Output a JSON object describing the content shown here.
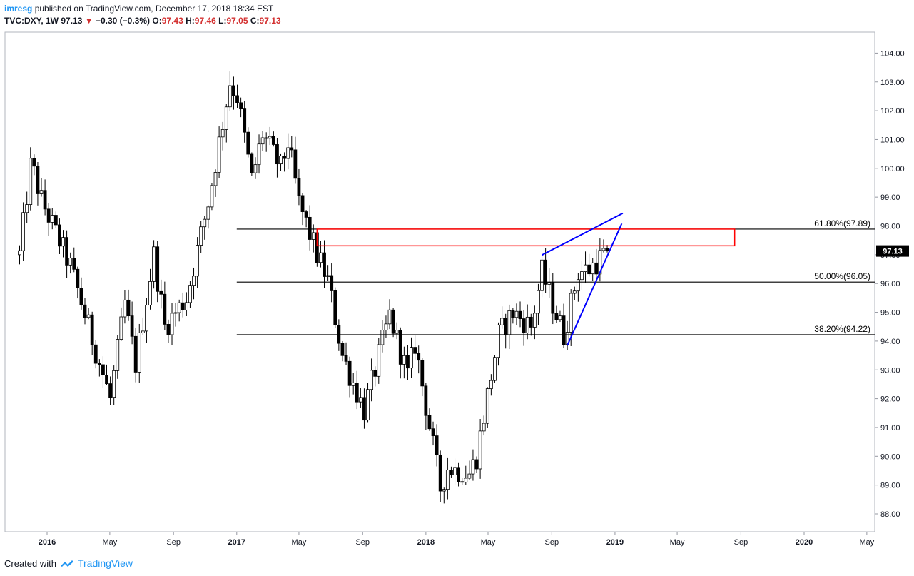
{
  "header": {
    "username": "imresg",
    "published_text": "published on TradingView.com, December 17, 2018 18:34 EST",
    "symbol": "TVC:DXY, 1W",
    "last": "97.13",
    "change_icon": "triangle-down-icon",
    "change": "−0.30 (−0.3%)",
    "o_label": "O:",
    "o_value": "97.43",
    "h_label": "H:",
    "h_value": "97.46",
    "l_label": "L:",
    "l_value": "97.05",
    "c_label": "C:",
    "c_value": "97.13"
  },
  "footer": {
    "created_with": "Created with",
    "brand": "TradingView",
    "logo_icon": "tradingview-logo-icon"
  },
  "colors": {
    "down": "#000000",
    "up": "#ffffff",
    "fib": "#000000",
    "zone": "#ff0000",
    "wedge": "#0000ff",
    "price_label_bg": "#000000"
  },
  "chart_data": {
    "type": "candlestick",
    "symbol": "TVC:DXY",
    "interval": "1W",
    "y_axis": {
      "min": 88,
      "max": 104,
      "ticks": [
        "88.00",
        "89.00",
        "90.00",
        "91.00",
        "92.00",
        "93.00",
        "94.00",
        "95.00",
        "96.00",
        "97.00",
        "98.00",
        "99.00",
        "100.00",
        "101.00",
        "102.00",
        "103.00",
        "104.00"
      ],
      "position": "right"
    },
    "x_axis": {
      "ticks": [
        {
          "label": "2016",
          "date": "2016-01-01",
          "bold": true
        },
        {
          "label": "May",
          "date": "2016-05-01"
        },
        {
          "label": "Sep",
          "date": "2016-09-01"
        },
        {
          "label": "2017",
          "date": "2017-01-01",
          "bold": true
        },
        {
          "label": "May",
          "date": "2017-05-01"
        },
        {
          "label": "Sep",
          "date": "2017-09-01"
        },
        {
          "label": "2018",
          "date": "2018-01-01",
          "bold": true
        },
        {
          "label": "May",
          "date": "2018-05-01"
        },
        {
          "label": "Sep",
          "date": "2018-09-01"
        },
        {
          "label": "2019",
          "date": "2019-01-01",
          "bold": true
        },
        {
          "label": "May",
          "date": "2019-05-01"
        },
        {
          "label": "Sep",
          "date": "2019-09-01"
        },
        {
          "label": "2020",
          "date": "2020-01-01",
          "bold": true
        },
        {
          "label": "May",
          "date": "2020-05-01"
        }
      ]
    },
    "last_price": "97.13",
    "fib_levels": [
      {
        "label": "61.80%(97.89)",
        "value": 97.89,
        "from": "2017-01-01"
      },
      {
        "label": "50.00%(96.05)",
        "value": 96.05,
        "from": "2017-01-01"
      },
      {
        "label": "38.20%(94.22)",
        "value": 94.22,
        "from": "2017-01-01"
      }
    ],
    "resistance_zone": {
      "from": "2017-06-05",
      "to": "2019-08-20",
      "top": 97.89,
      "bottom": 97.31
    },
    "wedge_lines": [
      {
        "start": {
          "date": "2018-08-13",
          "value": 96.99
        },
        "end": {
          "date": "2019-01-16",
          "value": 98.44
        }
      },
      {
        "start": {
          "date": "2018-10-01",
          "value": 93.85
        },
        "end": {
          "date": "2019-01-14",
          "value": 98.08
        }
      }
    ],
    "anchors": [
      {
        "date": "2015-11-09",
        "value": 97.0
      },
      {
        "date": "2015-12-01",
        "value": 100.2
      },
      {
        "date": "2015-12-21",
        "value": 98.9
      },
      {
        "date": "2016-02-15",
        "value": 96.6
      },
      {
        "date": "2016-05-02",
        "value": 92.0
      },
      {
        "date": "2016-05-30",
        "value": 95.3
      },
      {
        "date": "2016-06-20",
        "value": 93.2
      },
      {
        "date": "2016-07-25",
        "value": 97.0
      },
      {
        "date": "2016-08-15",
        "value": 94.5
      },
      {
        "date": "2016-09-26",
        "value": 95.5
      },
      {
        "date": "2016-11-07",
        "value": 98.8
      },
      {
        "date": "2016-12-19",
        "value": 103.0
      },
      {
        "date": "2017-01-02",
        "value": 102.5
      },
      {
        "date": "2017-01-30",
        "value": 99.6
      },
      {
        "date": "2017-02-20",
        "value": 101.2
      },
      {
        "date": "2017-03-27",
        "value": 100.0
      },
      {
        "date": "2017-04-10",
        "value": 100.9
      },
      {
        "date": "2017-05-01",
        "value": 98.8
      },
      {
        "date": "2017-06-05",
        "value": 97.0
      },
      {
        "date": "2017-06-26",
        "value": 96.1
      },
      {
        "date": "2017-07-24",
        "value": 93.5
      },
      {
        "date": "2017-09-04",
        "value": 91.6
      },
      {
        "date": "2017-10-23",
        "value": 94.9
      },
      {
        "date": "2017-11-27",
        "value": 92.8
      },
      {
        "date": "2017-12-11",
        "value": 93.9
      },
      {
        "date": "2018-01-29",
        "value": 88.9
      },
      {
        "date": "2018-02-12",
        "value": 89.6
      },
      {
        "date": "2018-03-26",
        "value": 89.4
      },
      {
        "date": "2018-04-09",
        "value": 90.0
      },
      {
        "date": "2018-05-21",
        "value": 94.2
      },
      {
        "date": "2018-06-18",
        "value": 95.0
      },
      {
        "date": "2018-07-23",
        "value": 94.5
      },
      {
        "date": "2018-08-13",
        "value": 96.4
      },
      {
        "date": "2018-09-24",
        "value": 94.2
      },
      {
        "date": "2018-10-22",
        "value": 96.4
      },
      {
        "date": "2018-11-12",
        "value": 96.5
      },
      {
        "date": "2018-12-17",
        "value": 97.13
      }
    ]
  }
}
